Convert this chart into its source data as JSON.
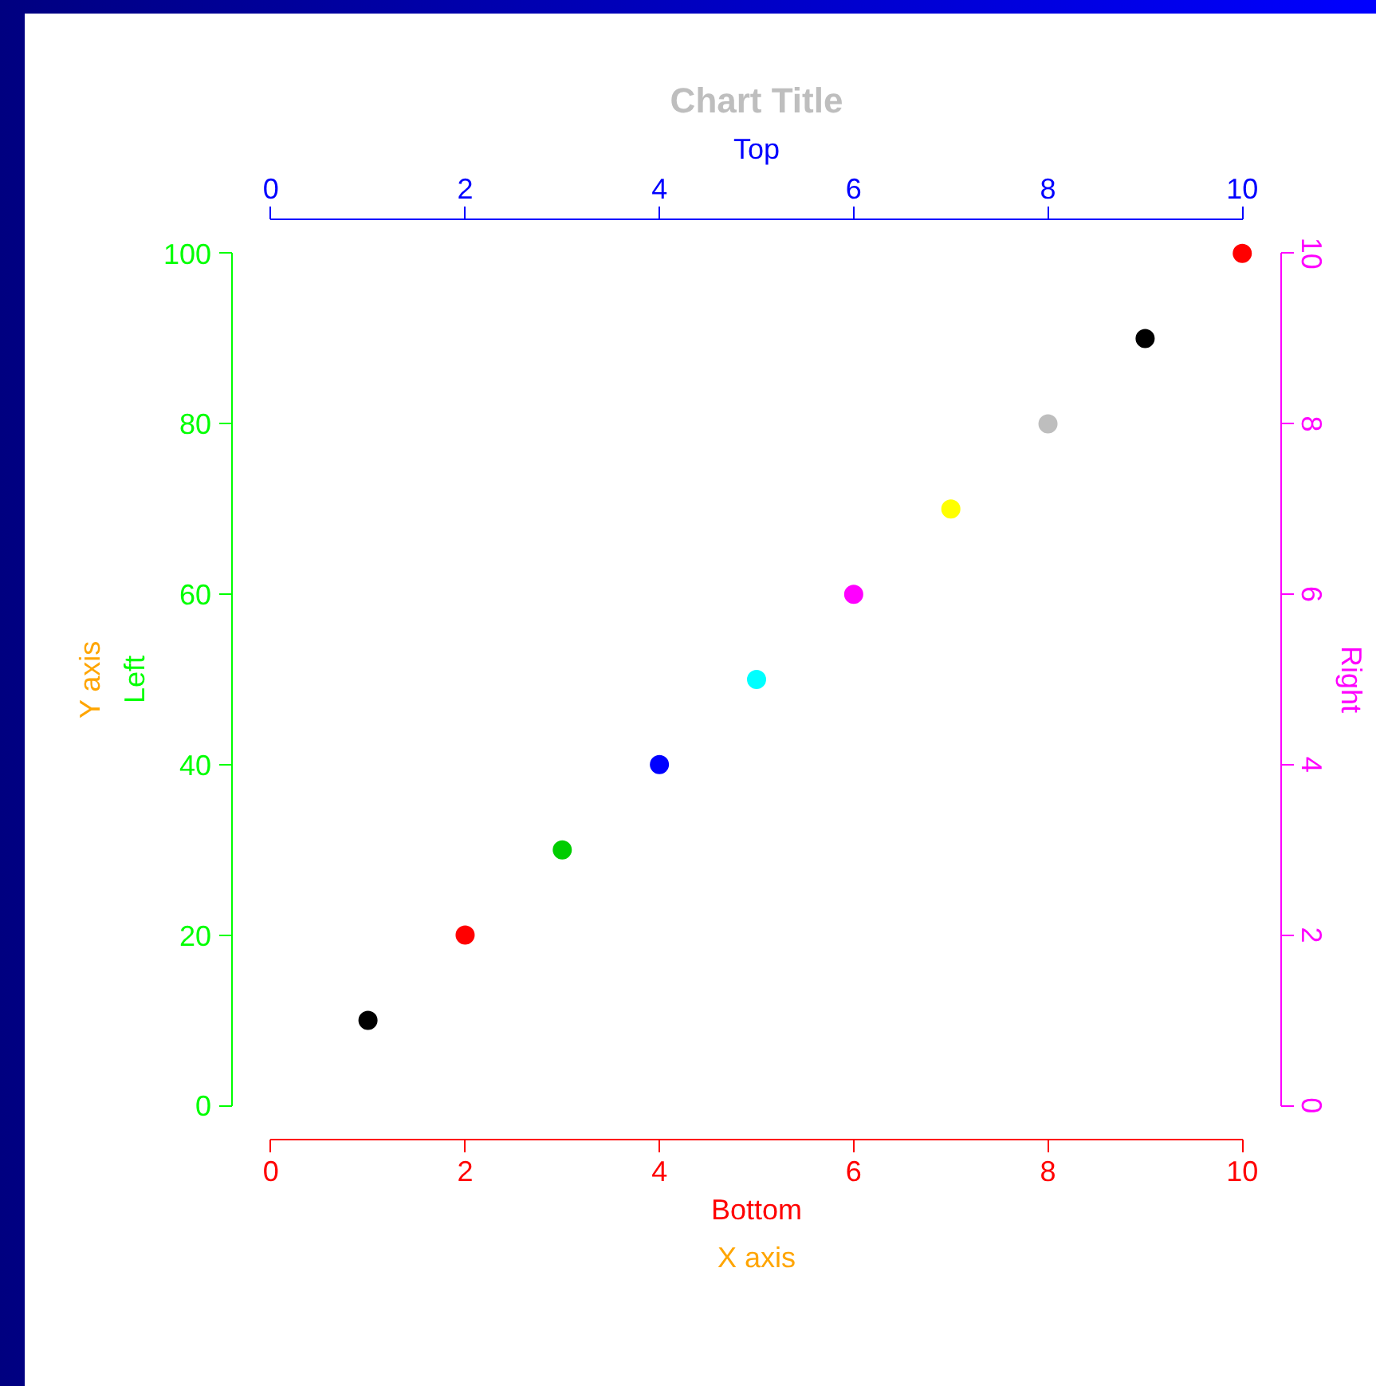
{
  "chart_data": {
    "type": "scatter",
    "title": "Chart Title",
    "xlabel": "Bottom",
    "ylabel": "Left",
    "x2label": "Top",
    "y2label": "Right",
    "annotations": [
      "X axis",
      "Y axis"
    ],
    "x": [
      1,
      2,
      3,
      4,
      5,
      6,
      7,
      8,
      9,
      10
    ],
    "values": [
      10,
      20,
      30,
      40,
      50,
      60,
      70,
      80,
      90,
      100
    ],
    "colors": [
      "#000000",
      "#ff0000",
      "#00cd00",
      "#0000ff",
      "#00ffff",
      "#ff00ff",
      "#ffff00",
      "#bebebe",
      "#000000",
      "#ff0000"
    ],
    "marker": "circle",
    "grid": false,
    "xlim": [
      0,
      10
    ],
    "xticks": [
      0,
      2,
      4,
      6,
      8,
      10
    ],
    "ylim": [
      0,
      100
    ],
    "yticks": [
      0,
      20,
      40,
      60,
      80,
      100
    ],
    "x2lim": [
      0,
      10
    ],
    "x2ticks": [
      0,
      2,
      4,
      6,
      8,
      10
    ],
    "y2lim": [
      0,
      10
    ],
    "y2ticks": [
      0,
      2,
      4,
      6,
      8,
      10
    ]
  }
}
